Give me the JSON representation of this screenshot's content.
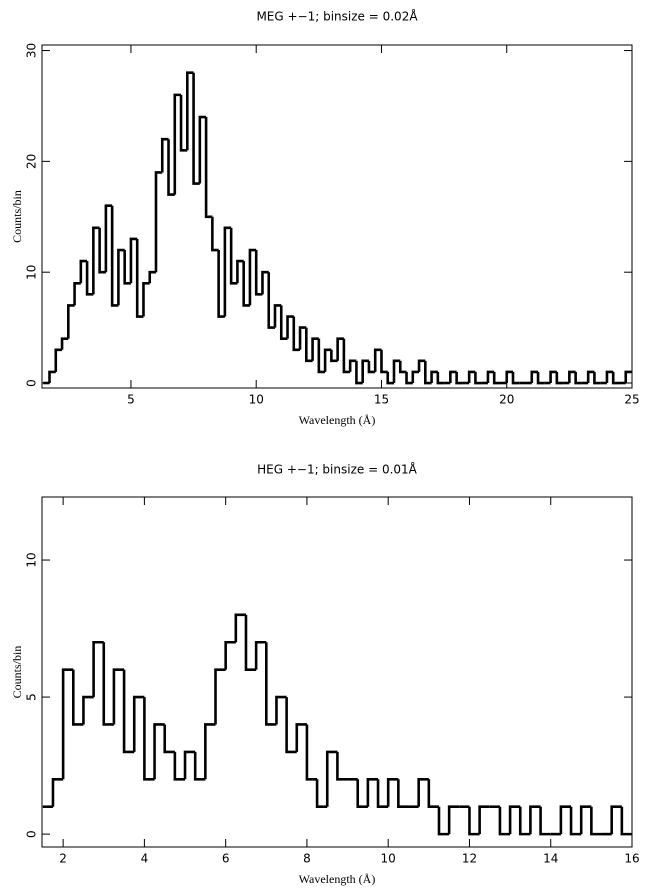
{
  "chart_data": [
    {
      "type": "histogram",
      "title": "MEG +−1; binsize = 0.02Å",
      "x_label": "Wavelength (Å)",
      "y_label": "Counts/bin",
      "color": "#000000",
      "xlim": [
        1.45,
        25
      ],
      "ylim": [
        -0.45,
        30.5
      ],
      "xticks": [
        5,
        10,
        15,
        20,
        25
      ],
      "yticks": [
        0,
        10,
        20,
        30
      ],
      "bins": [
        1.5,
        1.75,
        2,
        2.25,
        2.5,
        2.75,
        3,
        3.25,
        3.5,
        3.75,
        4,
        4.25,
        4.5,
        4.75,
        5,
        5.25,
        5.5,
        5.75,
        6,
        6.25,
        6.5,
        6.75,
        7,
        7.25,
        7.5,
        7.75,
        8,
        8.25,
        8.5,
        8.75,
        9,
        9.25,
        9.5,
        9.75,
        10,
        10.25,
        10.5,
        10.75,
        11,
        11.25,
        11.5,
        11.75,
        12,
        12.25,
        12.5,
        12.75,
        13,
        13.25,
        13.5,
        13.75,
        14,
        14.25,
        14.5,
        14.75,
        15,
        15.25,
        15.5,
        15.75,
        16,
        16.25,
        16.5,
        16.75,
        17,
        17.25,
        17.5,
        17.75,
        18,
        18.25,
        18.5,
        18.75,
        19,
        19.25,
        19.5,
        19.75,
        20,
        20.25,
        20.5,
        20.75,
        21,
        21.25,
        21.5,
        21.75,
        22,
        22.25,
        22.5,
        22.75,
        23,
        23.25,
        23.5,
        23.75,
        24,
        24.25,
        24.5,
        24.75,
        25
      ],
      "values": [
        0,
        1,
        3,
        4,
        7,
        9,
        11,
        8,
        14,
        10,
        16,
        7,
        12,
        9,
        13,
        6,
        9,
        10,
        19,
        22,
        17,
        26,
        21,
        28,
        18,
        24,
        15,
        12,
        6,
        14,
        9,
        11,
        7,
        12,
        8,
        10,
        5,
        7,
        4,
        6,
        3,
        5,
        2,
        4,
        1,
        3,
        2,
        4,
        1,
        2,
        0,
        2,
        1,
        3,
        1,
        0,
        2,
        1,
        0,
        1,
        2,
        0,
        1,
        0,
        0,
        1,
        0,
        0,
        1,
        0,
        0,
        1,
        0,
        0,
        1,
        0,
        0,
        0,
        1,
        0,
        0,
        1,
        0,
        0,
        1,
        0,
        0,
        1,
        0,
        0,
        1,
        0,
        0,
        1
      ]
    },
    {
      "type": "histogram",
      "title": "HEG +−1; binsize = 0.01Å",
      "x_label": "Wavelength (Å)",
      "y_label": "Counts/bin",
      "color": "#000000",
      "xlim": [
        1.48,
        16
      ],
      "ylim": [
        -0.47,
        12.3
      ],
      "xticks": [
        2,
        4,
        6,
        8,
        10,
        12,
        14,
        16
      ],
      "yticks": [
        0,
        5,
        10
      ],
      "bins": [
        1.5,
        1.75,
        2,
        2.25,
        2.5,
        2.75,
        3,
        3.25,
        3.5,
        3.75,
        4,
        4.25,
        4.5,
        4.75,
        5,
        5.25,
        5.5,
        5.75,
        6,
        6.25,
        6.5,
        6.75,
        7,
        7.25,
        7.5,
        7.75,
        8,
        8.25,
        8.5,
        8.75,
        9,
        9.25,
        9.5,
        9.75,
        10,
        10.25,
        10.5,
        10.75,
        11,
        11.25,
        11.5,
        11.75,
        12,
        12.25,
        12.5,
        12.75,
        13,
        13.25,
        13.5,
        13.75,
        14,
        14.25,
        14.5,
        14.75,
        15,
        15.25,
        15.5,
        15.75,
        16
      ],
      "values": [
        1,
        2,
        6,
        4,
        5,
        7,
        4,
        6,
        3,
        5,
        2,
        4,
        3,
        2,
        3,
        2,
        4,
        6,
        7,
        8,
        6,
        7,
        4,
        5,
        3,
        4,
        2,
        1,
        3,
        2,
        2,
        1,
        2,
        1,
        2,
        1,
        1,
        2,
        1,
        0,
        1,
        1,
        0,
        1,
        1,
        0,
        1,
        0,
        1,
        0,
        0,
        1,
        0,
        1,
        0,
        0,
        1,
        0
      ]
    }
  ]
}
